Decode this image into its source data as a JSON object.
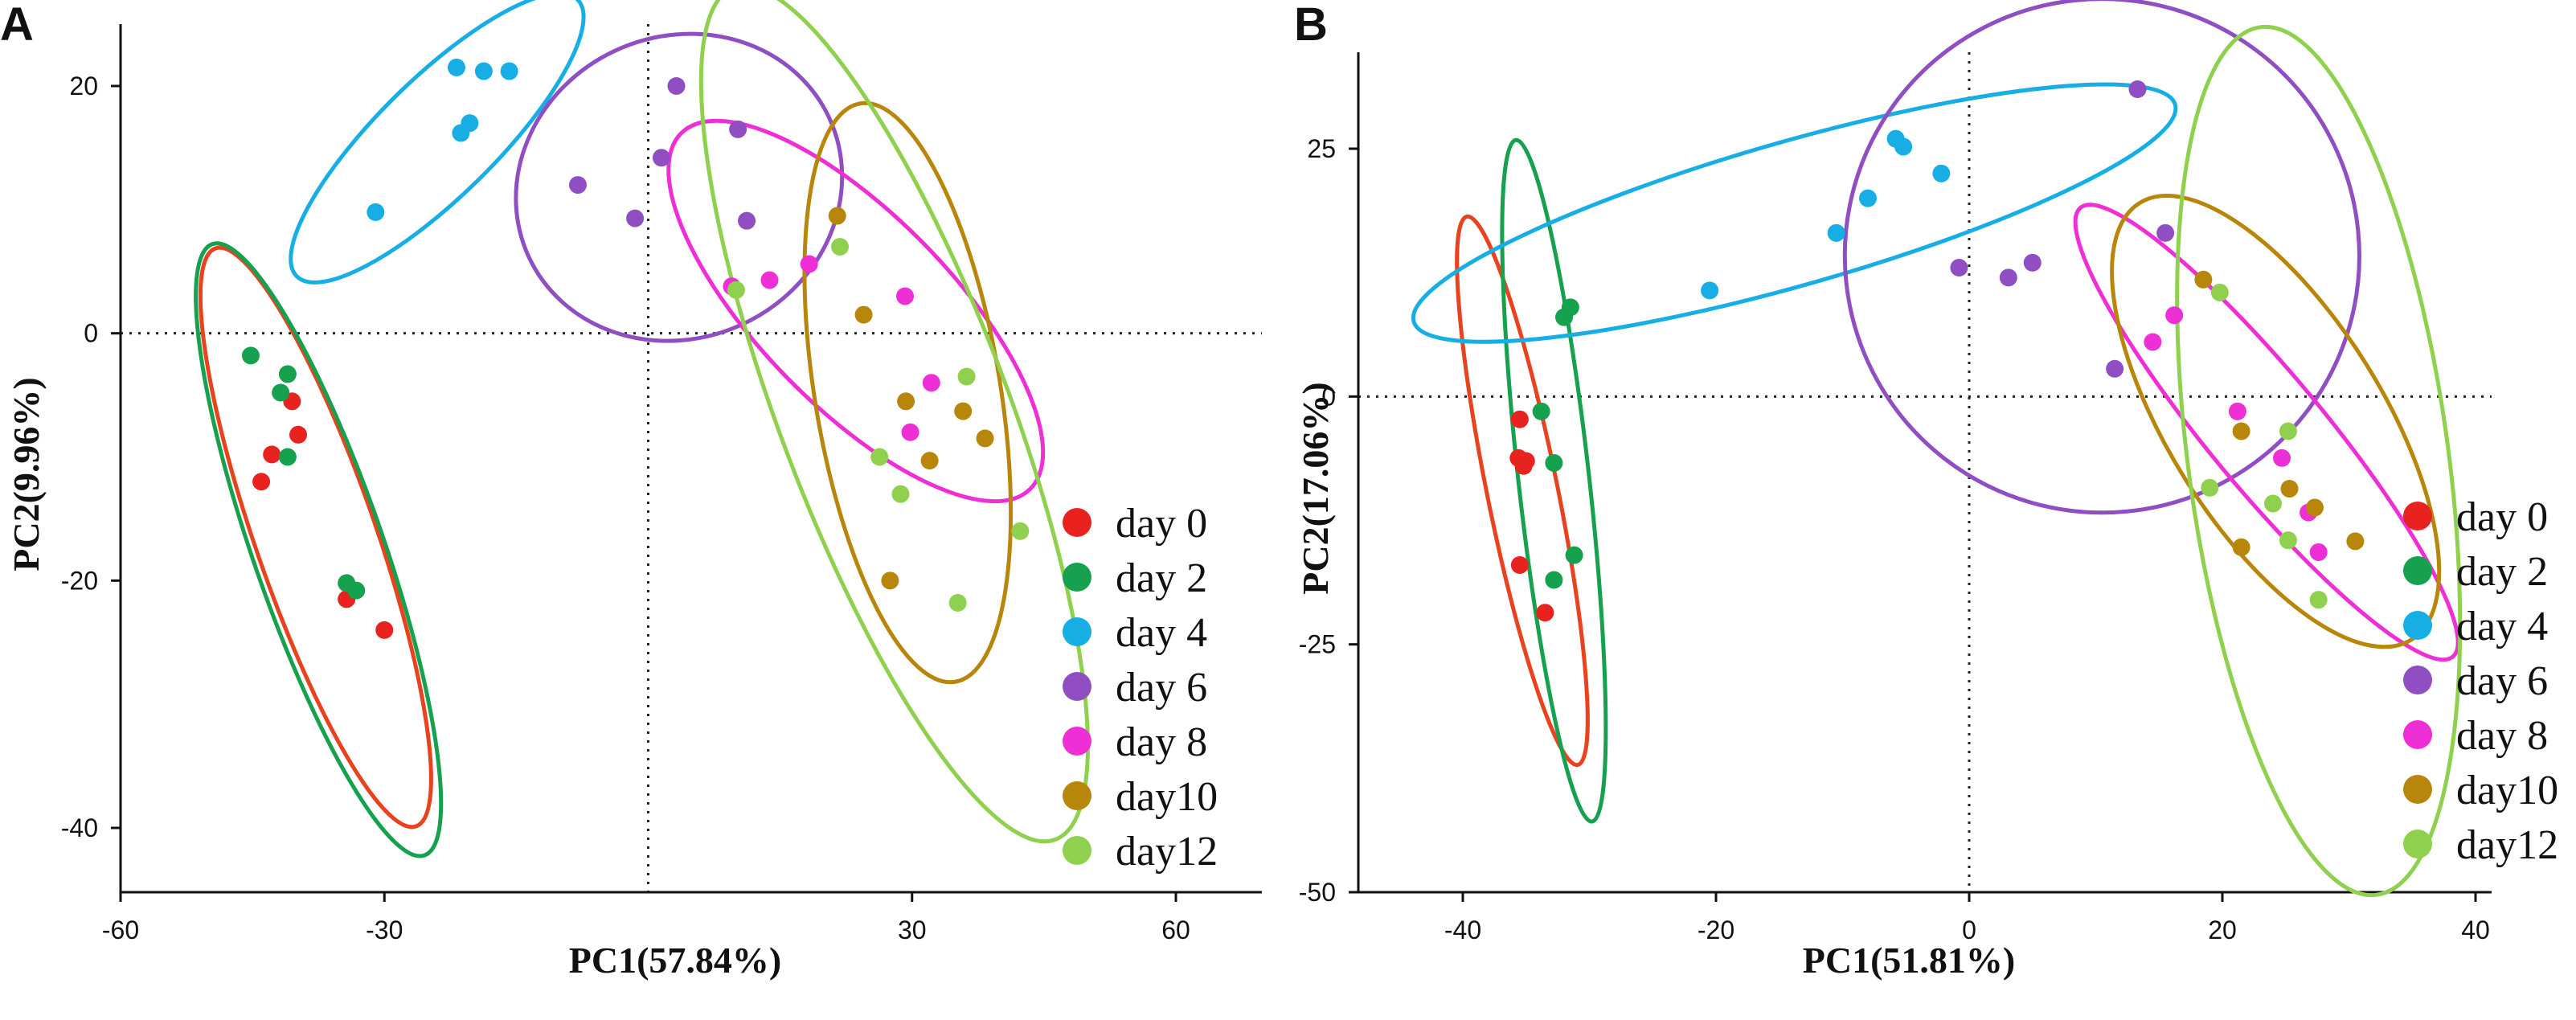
{
  "series_colors": {
    "day 0": "#e8231f",
    "day 2": "#15a14e",
    "day 4": "#17aee6",
    "day 6": "#8f4fc3",
    "day 8": "#ee2fd6",
    "day10": "#b8860b",
    "day12": "#8fd14f"
  },
  "ellipse_colors": {
    "day 0": "#e8421f",
    "day 2": "#15a14e",
    "day 4": "#17aee6",
    "day 6": "#8f4fc3",
    "day 8": "#ee2fd6",
    "day10": "#b8860b",
    "day12": "#8fd14f"
  },
  "chart_data": [
    {
      "type": "scatter",
      "panel_label": "A",
      "xlabel": "PC1(57.84%)",
      "ylabel": "PC2(9.96%)",
      "xlim": [
        -60,
        70
      ],
      "ylim": [
        -45,
        25
      ],
      "xticks": [
        -60,
        -30,
        30,
        60
      ],
      "yticks": [
        20,
        0,
        -20,
        -40
      ],
      "xtick_labels": [
        "-60",
        "-30",
        "30",
        "60"
      ],
      "ytick_labels": [
        "20",
        "0",
        "-20",
        "-40"
      ],
      "reference_lines": {
        "x": 0,
        "y": 0,
        "style": "dotted"
      },
      "legend_position": "bottom-right",
      "series": [
        {
          "name": "day 0",
          "points": [
            [
              -40.5,
              -5.5
            ],
            [
              -39.8,
              -8.2
            ],
            [
              -42.8,
              -9.8
            ],
            [
              -44,
              -12
            ],
            [
              -34.3,
              -21.5
            ],
            [
              -30,
              -24
            ]
          ],
          "ellipse": {
            "cx": -37.8,
            "cy": -16.5,
            "rx": 26,
            "ry": 6.3,
            "angle": -64
          }
        },
        {
          "name": "day 2",
          "points": [
            [
              -45.2,
              -1.8
            ],
            [
              -41,
              -3.3
            ],
            [
              -41.8,
              -4.8
            ],
            [
              -41,
              -10
            ],
            [
              -34.3,
              -20.2
            ],
            [
              -33.2,
              -20.8
            ]
          ],
          "ellipse": {
            "cx": -37.5,
            "cy": -17.5,
            "rx": 27.5,
            "ry": 6.8,
            "angle": -64
          }
        },
        {
          "name": "day 4",
          "points": [
            [
              -31,
              9.8
            ],
            [
              -21.3,
              16.2
            ],
            [
              -20.3,
              17.0
            ],
            [
              -21.8,
              21.5
            ],
            [
              -18.7,
              21.2
            ],
            [
              -15.8,
              21.2
            ]
          ],
          "ellipse": {
            "cx": -24,
            "cy": 15.8,
            "rx": 19.5,
            "ry": 5.2,
            "angle": 35
          }
        },
        {
          "name": "day 6",
          "points": [
            [
              -8,
              12
            ],
            [
              -1.5,
              9.3
            ],
            [
              1.5,
              14.2
            ],
            [
              3.2,
              20.0
            ],
            [
              10.2,
              16.5
            ],
            [
              11.2,
              9.1
            ]
          ],
          "ellipse": {
            "cx": 3.5,
            "cy": 11.8,
            "rx": 18.0,
            "ry": 12.5,
            "angle": 18
          }
        },
        {
          "name": "day 8",
          "points": [
            [
              9.5,
              3.8
            ],
            [
              13.8,
              4.3
            ],
            [
              18.3,
              5.6
            ],
            [
              29.2,
              3.0
            ],
            [
              32.2,
              -4
            ],
            [
              29.8,
              -8
            ]
          ],
          "ellipse": {
            "cx": 23.6,
            "cy": 1.8,
            "rx": 24.5,
            "ry": 8.5,
            "angle": -36
          }
        },
        {
          "name": "day10",
          "points": [
            [
              21.5,
              9.5
            ],
            [
              24.5,
              1.5
            ],
            [
              29.3,
              -5.5
            ],
            [
              35.8,
              -6.3
            ],
            [
              38.3,
              -8.5
            ],
            [
              32,
              -10.3
            ],
            [
              27.5,
              -20
            ]
          ],
          "ellipse": {
            "cx": 29.5,
            "cy": -4.8,
            "rx": 24,
            "ry": 10.3,
            "angle": -77
          }
        },
        {
          "name": "day12",
          "points": [
            [
              21.8,
              7
            ],
            [
              10,
              3.5
            ],
            [
              36.2,
              -3.5
            ],
            [
              26.3,
              -10
            ],
            [
              28.7,
              -13
            ],
            [
              42.3,
              -16
            ],
            [
              35.2,
              -21.8
            ]
          ],
          "ellipse": {
            "cx": 28,
            "cy": -6.5,
            "rx": 39,
            "ry": 11.8,
            "angle": -62
          }
        }
      ]
    },
    {
      "type": "scatter",
      "panel_label": "B",
      "xlabel": "PC1(51.81%)",
      "ylabel": "PC2(17.06%)",
      "xlim": [
        -45,
        40
      ],
      "ylim": [
        -50,
        35
      ],
      "xticks": [
        -40,
        -20,
        0,
        20,
        40
      ],
      "yticks": [
        25,
        0,
        -25,
        -50
      ],
      "xtick_labels": [
        "-40",
        "-20",
        "0",
        "20",
        "40"
      ],
      "ytick_labels": [
        "25",
        "0",
        "-25",
        "-50"
      ],
      "reference_lines": {
        "x": 0,
        "y": 0,
        "style": "dotted"
      },
      "legend_position": "bottom-right",
      "series": [
        {
          "name": "day 0",
          "points": [
            [
              -35.5,
              -2.3
            ],
            [
              -35.6,
              -6.2
            ],
            [
              -35,
              -6.5
            ],
            [
              -35.2,
              -7.0
            ],
            [
              -35.5,
              -17
            ],
            [
              -33.5,
              -21.8
            ]
          ],
          "ellipse": {
            "cx": -35.3,
            "cy": -9.5,
            "rx": 28,
            "ry": 2.8,
            "angle": -81
          }
        },
        {
          "name": "day 2",
          "points": [
            [
              -31.5,
              9.0
            ],
            [
              -32,
              8.0
            ],
            [
              -33.8,
              -1.5
            ],
            [
              -32.8,
              -6.7
            ],
            [
              -32.8,
              -18.5
            ],
            [
              -31.2,
              -16
            ]
          ],
          "ellipse": {
            "cx": -32.8,
            "cy": -8.5,
            "rx": 34.5,
            "ry": 2.8,
            "angle": -85
          }
        },
        {
          "name": "day 4",
          "points": [
            [
              -20.5,
              10.7
            ],
            [
              -10.5,
              16.5
            ],
            [
              -8,
              20
            ],
            [
              -5.8,
              26
            ],
            [
              -5.2,
              25.2
            ],
            [
              -2.2,
              22.5
            ]
          ],
          "ellipse": {
            "cx": -13.8,
            "cy": 18.5,
            "rx": 32,
            "ry": 7.0,
            "angle": 20
          }
        },
        {
          "name": "day 6",
          "points": [
            [
              -0.8,
              13
            ],
            [
              3.1,
              12
            ],
            [
              5,
              13.5
            ],
            [
              11.5,
              2.8
            ],
            [
              15.5,
              16.5
            ],
            [
              13.3,
              31
            ]
          ],
          "ellipse": {
            "cx": 10.5,
            "cy": 14.2,
            "rx": 20.8,
            "ry": 25,
            "angle": -20
          }
        },
        {
          "name": "day 8",
          "points": [
            [
              14.5,
              5.5
            ],
            [
              16.2,
              8.2
            ],
            [
              21.2,
              -1.5
            ],
            [
              24.7,
              -6.2
            ],
            [
              26.8,
              -11.7
            ],
            [
              27.6,
              -15.7
            ]
          ],
          "ellipse": {
            "cx": 23.5,
            "cy": -3.6,
            "rx": 27,
            "ry": 4.8,
            "angle": -57
          }
        },
        {
          "name": "day10",
          "points": [
            [
              18.5,
              11.8
            ],
            [
              21.5,
              -3.5
            ],
            [
              25.3,
              -9.3
            ],
            [
              27.3,
              -11.2
            ],
            [
              21.5,
              -15.2
            ],
            [
              30.5,
              -14.6
            ]
          ],
          "ellipse": {
            "cx": 24.2,
            "cy": -2.5,
            "rx": 24.5,
            "ry": 8.8,
            "angle": -64
          }
        },
        {
          "name": "day12",
          "points": [
            [
              19.8,
              10.5
            ],
            [
              25.2,
              -3.5
            ],
            [
              19,
              -9.2
            ],
            [
              24,
              -10.8
            ],
            [
              25.2,
              -14.5
            ],
            [
              27.6,
              -20.5
            ]
          ],
          "ellipse": {
            "cx": 27.6,
            "cy": -6.5,
            "rx": 44,
            "ry": 10.3,
            "angle": -84
          }
        }
      ]
    }
  ]
}
